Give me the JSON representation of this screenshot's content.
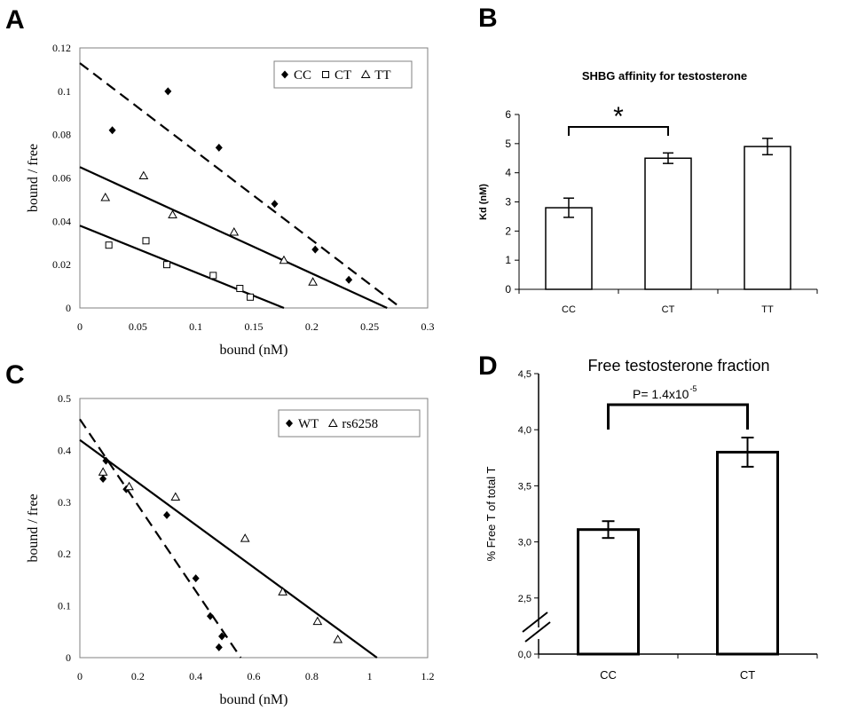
{
  "chart_data": [
    {
      "panel": "A",
      "type": "scatter",
      "title": "",
      "xlabel": "bound (nM)",
      "ylabel": "bound / free",
      "xlim": [
        0,
        0.3
      ],
      "ylim": [
        0,
        0.12
      ],
      "xticks": [
        "0",
        "0.05",
        "0.1",
        "0.15",
        "0.2",
        "0.25",
        "0.3"
      ],
      "yticks": [
        "0",
        "0.02",
        "0.04",
        "0.06",
        "0.08",
        "0.1",
        "0.12"
      ],
      "legend": "top-right",
      "grid": false,
      "series": [
        {
          "name": "CC",
          "marker": "filled-diamond",
          "line": "dashed",
          "points": [
            [
              0.028,
              0.082
            ],
            [
              0.076,
              0.1
            ],
            [
              0.12,
              0.074
            ],
            [
              0.168,
              0.048
            ],
            [
              0.203,
              0.027
            ],
            [
              0.232,
              0.013
            ]
          ],
          "fit": [
            [
              0,
              0.113
            ],
            [
              0.277,
              0
            ]
          ]
        },
        {
          "name": "CT",
          "marker": "open-square",
          "line": "solid",
          "points": [
            [
              0.025,
              0.029
            ],
            [
              0.057,
              0.031
            ],
            [
              0.075,
              0.02
            ],
            [
              0.115,
              0.015
            ],
            [
              0.138,
              0.009
            ],
            [
              0.147,
              0.005
            ]
          ],
          "fit": [
            [
              0,
              0.038
            ],
            [
              0.176,
              0
            ]
          ]
        },
        {
          "name": "TT",
          "marker": "open-triangle",
          "line": "solid",
          "points": [
            [
              0.022,
              0.051
            ],
            [
              0.055,
              0.061
            ],
            [
              0.08,
              0.043
            ],
            [
              0.133,
              0.035
            ],
            [
              0.176,
              0.022
            ],
            [
              0.201,
              0.012
            ]
          ],
          "fit": [
            [
              0,
              0.065
            ],
            [
              0.265,
              0
            ]
          ]
        }
      ]
    },
    {
      "panel": "B",
      "type": "bar",
      "title": "SHBG affinity for testosterone",
      "xlabel": "",
      "ylabel": "Kd (nM)",
      "ylim": [
        0,
        6
      ],
      "yticks": [
        "0",
        "1",
        "2",
        "3",
        "4",
        "5",
        "6"
      ],
      "categories": [
        "CC",
        "CT",
        "TT"
      ],
      "values": [
        2.8,
        4.5,
        4.9
      ],
      "errors": [
        0.33,
        0.18,
        0.28
      ],
      "annotation": {
        "text": "*",
        "between": [
          "CC",
          "CT"
        ]
      }
    },
    {
      "panel": "C",
      "type": "scatter",
      "title": "",
      "xlabel": "bound (nM)",
      "ylabel": "bound / free",
      "xlim": [
        0,
        1.2
      ],
      "ylim": [
        0,
        0.5
      ],
      "xticks": [
        "0",
        "0.2",
        "0.4",
        "0.6",
        "0.8",
        "1",
        "1.2"
      ],
      "yticks": [
        "0",
        "0.1",
        "0.2",
        "0.3",
        "0.4",
        "0.5"
      ],
      "legend": "top-right",
      "grid": false,
      "series": [
        {
          "name": "WT",
          "marker": "filled-diamond",
          "line": "dashed",
          "points": [
            [
              0.08,
              0.345
            ],
            [
              0.09,
              0.38
            ],
            [
              0.16,
              0.325
            ],
            [
              0.3,
              0.275
            ],
            [
              0.4,
              0.153
            ],
            [
              0.45,
              0.08
            ],
            [
              0.48,
              0.02
            ],
            [
              0.49,
              0.041
            ]
          ],
          "fit": [
            [
              0,
              0.46
            ],
            [
              0.555,
              0
            ]
          ]
        },
        {
          "name": "rs6258",
          "marker": "open-triangle",
          "line": "solid",
          "points": [
            [
              0.08,
              0.358
            ],
            [
              0.17,
              0.33
            ],
            [
              0.33,
              0.31
            ],
            [
              0.57,
              0.23
            ],
            [
              0.7,
              0.127
            ],
            [
              0.82,
              0.07
            ],
            [
              0.89,
              0.035
            ]
          ],
          "fit": [
            [
              0,
              0.42
            ],
            [
              1.025,
              0
            ]
          ]
        }
      ]
    },
    {
      "panel": "D",
      "type": "bar",
      "title": "Free testosterone fraction",
      "xlabel": "",
      "ylabel": "% Free T of total T",
      "ylim": [
        2.0,
        4.5
      ],
      "axis_break": true,
      "yticks": [
        "0,0",
        "2,5",
        "3,0",
        "3,5",
        "4,0",
        "4,5"
      ],
      "categories": [
        "CC",
        "CT"
      ],
      "values": [
        3.11,
        3.8
      ],
      "errors": [
        0.075,
        0.13
      ],
      "annotation": {
        "text": "P= 1.4x10",
        "superscript": "-5"
      }
    }
  ],
  "labels": {
    "a": "A",
    "b": "B",
    "c": "C",
    "d": "D"
  },
  "colors": {
    "ink": "#000000",
    "plot_border": "#808080",
    "background": "#ffffff"
  }
}
